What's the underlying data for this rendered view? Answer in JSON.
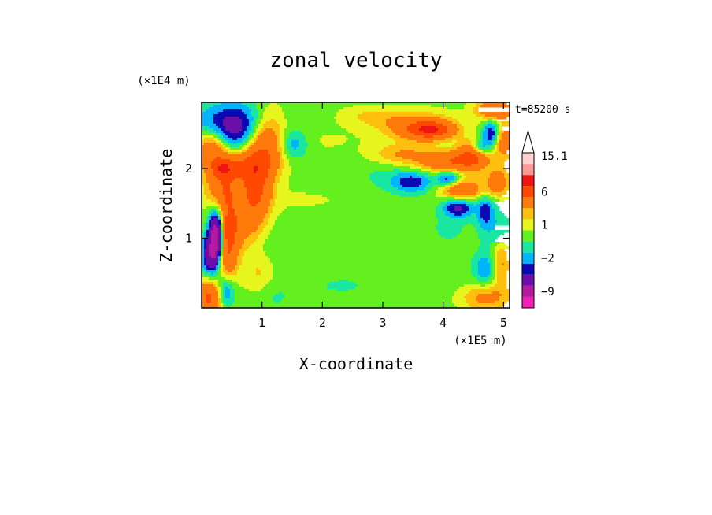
{
  "chart_data": {
    "type": "heatmap",
    "title": "zonal velocity",
    "xlabel": "X-coordinate",
    "ylabel": "Z-coordinate",
    "x_scale_label": "(×1E5 m)",
    "y_scale_label": "(×1E4 m)",
    "time_label": "t=85200 s",
    "xlim": [
      0,
      5.1
    ],
    "ylim": [
      0,
      2.95
    ],
    "x_ticks": [
      "1",
      "2",
      "3",
      "4",
      "5"
    ],
    "x_tick_values": [
      1,
      2,
      3,
      4,
      5
    ],
    "y_ticks": [
      "1",
      "2"
    ],
    "y_tick_values": [
      1,
      2
    ],
    "colorbar": {
      "labels": [
        "15.1",
        "6",
        "1",
        "−2",
        "−9"
      ],
      "label_values": [
        15.1,
        6,
        1,
        -2,
        -9
      ],
      "levels": [
        -12,
        -9,
        -6,
        -3,
        -2,
        -1,
        0,
        1,
        2,
        3,
        6,
        9,
        12,
        15.1
      ],
      "colors": [
        "#f21fb4",
        "#b419a0",
        "#6a0fa8",
        "#0a0ab4",
        "#00b4ff",
        "#19e6a0",
        "#64f01e",
        "#e6f51e",
        "#ffbf0f",
        "#ff7a0a",
        "#ff4800",
        "#ee1414",
        "#ff9a9a",
        "#ffd2d2"
      ],
      "extend_max": true
    },
    "field_note": "",
    "features": [
      {
        "x": 0.55,
        "z": 2.6,
        "w": 0.65,
        "h": 0.35,
        "v": -4.5
      },
      {
        "x": 0.15,
        "z": 2.3,
        "w": 0.25,
        "h": 0.25,
        "v": 5
      },
      {
        "x": 0.55,
        "z": 2.05,
        "w": 0.45,
        "h": 0.2,
        "v": 4
      },
      {
        "x": 0.35,
        "z": 1.75,
        "w": 0.3,
        "h": 0.3,
        "v": 4
      },
      {
        "x": 0.9,
        "z": 1.8,
        "w": 0.25,
        "h": 0.5,
        "v": 6
      },
      {
        "x": 1.1,
        "z": 2.4,
        "w": 0.3,
        "h": 0.45,
        "v": 5
      },
      {
        "x": 0.25,
        "z": 1.05,
        "w": 0.12,
        "h": 0.35,
        "v": -10
      },
      {
        "x": 0.15,
        "z": 0.75,
        "w": 0.15,
        "h": 0.3,
        "v": -5
      },
      {
        "x": 0.42,
        "z": 0.95,
        "w": 0.18,
        "h": 0.6,
        "v": 6
      },
      {
        "x": 0.12,
        "z": 0.15,
        "w": 0.2,
        "h": 0.25,
        "v": 6
      },
      {
        "x": 0.4,
        "z": 0.25,
        "w": 0.15,
        "h": 0.25,
        "v": -4
      },
      {
        "x": 0.65,
        "z": 1.2,
        "w": 0.35,
        "h": 0.4,
        "v": 3
      },
      {
        "x": 1.5,
        "z": 2.35,
        "w": 0.25,
        "h": 0.2,
        "v": -2.5
      },
      {
        "x": 2.0,
        "z": 2.4,
        "w": 0.7,
        "h": 0.2,
        "v": 0.5
      },
      {
        "x": 1.7,
        "z": 1.55,
        "w": 0.9,
        "h": 0.2,
        "v": 0.5
      },
      {
        "x": 1.2,
        "z": 0.9,
        "w": 1.0,
        "h": 0.3,
        "v": -0.5
      },
      {
        "x": 2.7,
        "z": 0.8,
        "w": 0.9,
        "h": 0.35,
        "v": -0.5
      },
      {
        "x": 3.1,
        "z": 1.9,
        "w": 0.6,
        "h": 0.25,
        "v": -0.8
      },
      {
        "x": 3.5,
        "z": 1.8,
        "w": 0.35,
        "h": 0.15,
        "v": -3
      },
      {
        "x": 3.6,
        "z": 2.6,
        "w": 0.6,
        "h": 0.2,
        "v": 4
      },
      {
        "x": 4.1,
        "z": 2.1,
        "w": 0.5,
        "h": 0.15,
        "v": 5
      },
      {
        "x": 4.3,
        "z": 1.7,
        "w": 0.35,
        "h": 0.15,
        "v": 5
      },
      {
        "x": 4.25,
        "z": 1.45,
        "w": 0.25,
        "h": 0.15,
        "v": -4
      },
      {
        "x": 4.1,
        "z": 1.85,
        "w": 0.2,
        "h": 0.12,
        "v": -4
      },
      {
        "x": 4.6,
        "z": 2.3,
        "w": 0.15,
        "h": 0.12,
        "v": -4
      },
      {
        "x": 4.5,
        "z": 2.2,
        "w": 0.25,
        "h": 0.2,
        "v": 5
      },
      {
        "x": 4.8,
        "z": 2.5,
        "w": 0.15,
        "h": 0.2,
        "v": -4
      },
      {
        "x": 5.0,
        "z": 2.4,
        "w": 0.15,
        "h": 0.25,
        "v": 4
      },
      {
        "x": 4.9,
        "z": 1.8,
        "w": 0.2,
        "h": 0.2,
        "v": 4
      },
      {
        "x": 4.7,
        "z": 1.4,
        "w": 0.15,
        "h": 0.25,
        "v": -3
      },
      {
        "x": 4.9,
        "z": 1.1,
        "w": 0.25,
        "h": 0.3,
        "v": -1.5
      },
      {
        "x": 4.7,
        "z": 0.55,
        "w": 0.2,
        "h": 0.25,
        "v": -2.5
      },
      {
        "x": 4.95,
        "z": 0.65,
        "w": 0.15,
        "h": 0.35,
        "v": 3
      },
      {
        "x": 4.7,
        "z": 0.15,
        "w": 0.4,
        "h": 0.2,
        "v": 3
      },
      {
        "x": 4.85,
        "z": 2.85,
        "w": 0.3,
        "h": 0.15,
        "v": 5
      },
      {
        "x": 4.1,
        "z": 1.15,
        "w": 0.35,
        "h": 0.25,
        "v": -0.8
      },
      {
        "x": 3.9,
        "z": 0.5,
        "w": 0.5,
        "h": 0.3,
        "v": -0.5
      },
      {
        "x": 2.3,
        "z": 0.3,
        "w": 0.8,
        "h": 0.2,
        "v": -0.6
      },
      {
        "x": 1.2,
        "z": 0.15,
        "w": 0.3,
        "h": 0.25,
        "v": -0.7
      },
      {
        "x": 0.95,
        "z": 0.5,
        "w": 0.25,
        "h": 0.3,
        "v": 1.5
      },
      {
        "x": 3.3,
        "z": 2.2,
        "w": 0.5,
        "h": 0.15,
        "v": 2.5
      },
      {
        "x": 3.8,
        "z": 2.55,
        "w": 0.35,
        "h": 0.12,
        "v": 6
      },
      {
        "x": 2.8,
        "z": 2.75,
        "w": 0.5,
        "h": 0.15,
        "v": 1.5
      },
      {
        "x": 0.35,
        "z": 2.0,
        "w": 0.15,
        "h": 0.12,
        "v": 4
      }
    ]
  }
}
